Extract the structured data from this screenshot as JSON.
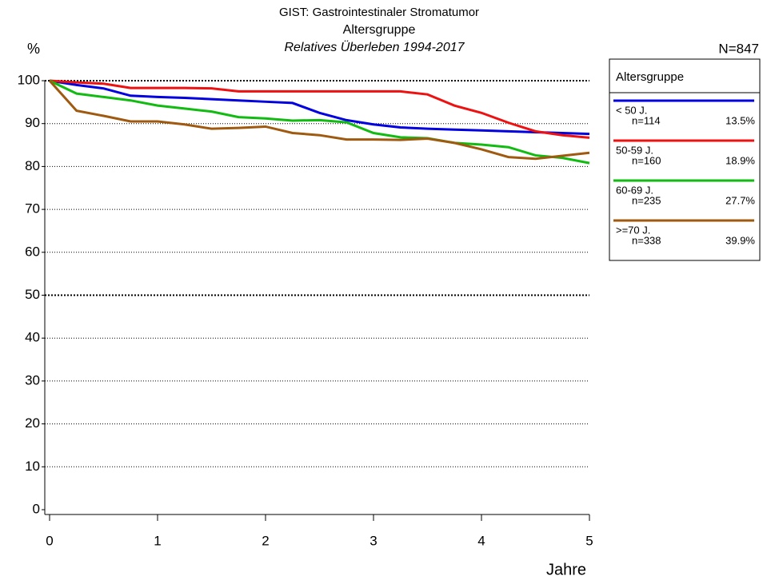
{
  "chart_data": {
    "type": "line",
    "title": "GIST: Gastrointestinaler Stromatumor",
    "title2": "Altersgruppe",
    "subtitle": "Relatives Überleben 1994-2017",
    "y_label": "%",
    "x_label": "Jahre",
    "total": "N=847",
    "legend_title": "Altersgruppe",
    "x": [
      0,
      0.25,
      0.5,
      0.75,
      1,
      1.25,
      1.5,
      1.75,
      2,
      2.25,
      2.5,
      2.75,
      3,
      3.25,
      3.5,
      3.75,
      4,
      4.25,
      4.5,
      4.75,
      5
    ],
    "series": [
      {
        "name": "< 50 J.",
        "n": "n=114",
        "share": "13.5%",
        "color": "#0000e0",
        "values": [
          100,
          99,
          98.2,
          96.5,
          96.2,
          96,
          95.7,
          95.4,
          95.1,
          94.8,
          92.5,
          90.8,
          89.8,
          89.1,
          88.8,
          88.6,
          88.4,
          88.2,
          88.0,
          87.8,
          87.6
        ]
      },
      {
        "name": "50-59 J.",
        "n": "n=160",
        "share": "18.9%",
        "color": "#ee1111",
        "values": [
          100,
          99.6,
          99.3,
          98.3,
          98.3,
          98.3,
          98.2,
          97.5,
          97.5,
          97.5,
          97.5,
          97.5,
          97.5,
          97.5,
          96.8,
          94.2,
          92.5,
          90.2,
          88.2,
          87.3,
          86.7
        ]
      },
      {
        "name": "60-69 J.",
        "n": "n=235",
        "share": "27.7%",
        "color": "#11bb11",
        "values": [
          100,
          97,
          96.2,
          95.4,
          94.2,
          93.5,
          92.8,
          91.5,
          91.2,
          90.7,
          90.8,
          90.3,
          87.8,
          86.8,
          86.6,
          85.5,
          85.1,
          84.5,
          82.6,
          82,
          80.8
        ]
      },
      {
        "name": ">=70 J.",
        "n": "n=338",
        "share": "39.9%",
        "color": "#a05a10",
        "values": [
          100,
          93,
          91.8,
          90.5,
          90.5,
          89.8,
          88.8,
          89,
          89.3,
          87.8,
          87.3,
          86.3,
          86.3,
          86.2,
          86.5,
          85.5,
          84,
          82.2,
          81.8,
          82.5,
          83.2
        ]
      }
    ],
    "xlim": [
      0,
      5
    ],
    "xticks": [
      0,
      1,
      2,
      3,
      4,
      5
    ],
    "ylim": [
      0,
      100
    ],
    "yticks": [
      0,
      10,
      20,
      30,
      40,
      50,
      60,
      70,
      80,
      90,
      100
    ],
    "grid": true
  }
}
